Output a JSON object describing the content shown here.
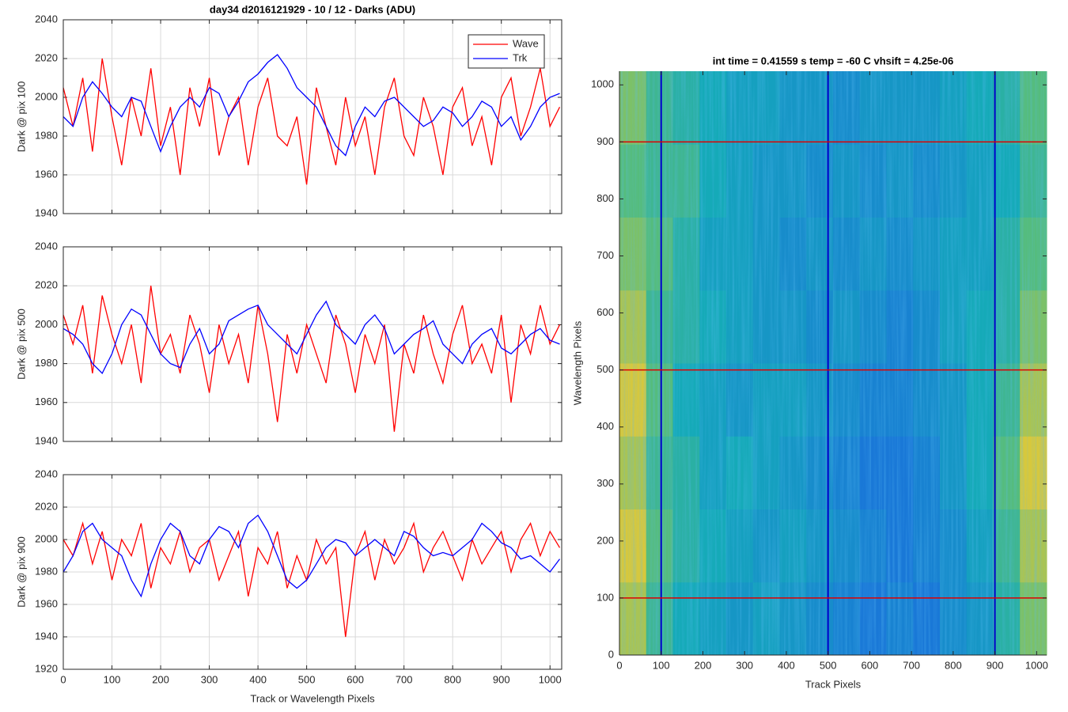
{
  "chart_data": [
    {
      "type": "line",
      "title": "day34 d2016121929 - 10 / 12 - Darks (ADU)",
      "ylabel": "Dark @ pix 100",
      "x": [
        0,
        20,
        40,
        60,
        80,
        100,
        120,
        140,
        160,
        180,
        200,
        220,
        240,
        260,
        280,
        300,
        320,
        340,
        360,
        380,
        400,
        420,
        440,
        460,
        480,
        500,
        520,
        540,
        560,
        580,
        600,
        620,
        640,
        660,
        680,
        700,
        720,
        740,
        760,
        780,
        800,
        820,
        840,
        860,
        880,
        900,
        920,
        940,
        960,
        980,
        1000,
        1020
      ],
      "series": [
        {
          "name": "Wave",
          "color": "#ff0000",
          "values": [
            2005,
            1985,
            2010,
            1972,
            2020,
            1990,
            1965,
            2000,
            1980,
            2015,
            1975,
            1995,
            1960,
            2005,
            1985,
            2010,
            1970,
            1990,
            2000,
            1965,
            1995,
            2010,
            1980,
            1975,
            1990,
            1955,
            2005,
            1985,
            1965,
            2000,
            1975,
            1990,
            1960,
            1995,
            2010,
            1980,
            1970,
            2000,
            1985,
            1960,
            1995,
            2005,
            1975,
            1990,
            1965,
            2000,
            2010,
            1980,
            1995,
            2015,
            1985,
            1995
          ]
        },
        {
          "name": "Trk",
          "color": "#0000ff",
          "values": [
            1990,
            1985,
            2000,
            2008,
            2002,
            1995,
            1990,
            2000,
            1998,
            1985,
            1972,
            1985,
            1995,
            2000,
            1995,
            2005,
            2002,
            1990,
            1998,
            2008,
            2012,
            2018,
            2022,
            2015,
            2005,
            2000,
            1995,
            1985,
            1975,
            1970,
            1985,
            1995,
            1990,
            1998,
            2000,
            1995,
            1990,
            1985,
            1988,
            1995,
            1992,
            1985,
            1990,
            1998,
            1995,
            1985,
            1990,
            1978,
            1985,
            1995,
            2000,
            2002
          ]
        }
      ],
      "xlim": [
        0,
        1024
      ],
      "xticks": [
        0,
        100,
        200,
        300,
        400,
        500,
        600,
        700,
        800,
        900,
        1000
      ],
      "show_xticklabels": false,
      "ylim": [
        1940,
        2040
      ],
      "yticks": [
        1940,
        1960,
        1980,
        2000,
        2020,
        2040
      ],
      "grid": true,
      "legend": "northeast"
    },
    {
      "type": "line",
      "ylabel": "Dark @ pix 500",
      "x": [
        0,
        20,
        40,
        60,
        80,
        100,
        120,
        140,
        160,
        180,
        200,
        220,
        240,
        260,
        280,
        300,
        320,
        340,
        360,
        380,
        400,
        420,
        440,
        460,
        480,
        500,
        520,
        540,
        560,
        580,
        600,
        620,
        640,
        660,
        680,
        700,
        720,
        740,
        760,
        780,
        800,
        820,
        840,
        860,
        880,
        900,
        920,
        940,
        960,
        980,
        1000,
        1020
      ],
      "series": [
        {
          "color": "#ff0000",
          "values": [
            2005,
            1990,
            2010,
            1975,
            2015,
            1995,
            1980,
            2000,
            1970,
            2020,
            1985,
            1995,
            1975,
            2005,
            1990,
            1965,
            2000,
            1980,
            1995,
            1970,
            2010,
            1985,
            1950,
            1995,
            1975,
            2000,
            1985,
            1970,
            2005,
            1990,
            1965,
            1995,
            1980,
            2000,
            1945,
            1990,
            1975,
            2005,
            1985,
            1970,
            1995,
            2010,
            1980,
            1990,
            1975,
            2005,
            1960,
            2000,
            1985,
            2010,
            1990,
            2000
          ]
        },
        {
          "color": "#0000ff",
          "values": [
            1998,
            1995,
            1990,
            1980,
            1975,
            1985,
            2000,
            2008,
            2005,
            1995,
            1985,
            1980,
            1978,
            1990,
            1998,
            1985,
            1990,
            2002,
            2005,
            2008,
            2010,
            2000,
            1995,
            1990,
            1985,
            1995,
            2005,
            2012,
            2000,
            1995,
            1990,
            2000,
            2005,
            1998,
            1985,
            1990,
            1995,
            1998,
            2002,
            1990,
            1985,
            1980,
            1990,
            1995,
            1998,
            1988,
            1985,
            1990,
            1995,
            1998,
            1992,
            1990
          ]
        }
      ],
      "xlim": [
        0,
        1024
      ],
      "xticks": [
        0,
        100,
        200,
        300,
        400,
        500,
        600,
        700,
        800,
        900,
        1000
      ],
      "show_xticklabels": false,
      "ylim": [
        1940,
        2040
      ],
      "yticks": [
        1940,
        1960,
        1980,
        2000,
        2020,
        2040
      ],
      "grid": true
    },
    {
      "type": "line",
      "ylabel": "Dark @ pix 900",
      "xlabel": "Track or Wavelength Pixels",
      "x": [
        0,
        20,
        40,
        60,
        80,
        100,
        120,
        140,
        160,
        180,
        200,
        220,
        240,
        260,
        280,
        300,
        320,
        340,
        360,
        380,
        400,
        420,
        440,
        460,
        480,
        500,
        520,
        540,
        560,
        580,
        600,
        620,
        640,
        660,
        680,
        700,
        720,
        740,
        760,
        780,
        800,
        820,
        840,
        860,
        880,
        900,
        920,
        940,
        960,
        980,
        1000,
        1020
      ],
      "series": [
        {
          "color": "#ff0000",
          "values": [
            2000,
            1990,
            2010,
            1985,
            2005,
            1975,
            2000,
            1990,
            2010,
            1970,
            1995,
            1985,
            2005,
            1980,
            1995,
            2000,
            1975,
            1990,
            2005,
            1965,
            1995,
            1985,
            2005,
            1970,
            1990,
            1975,
            2000,
            1985,
            1995,
            1940,
            1990,
            2005,
            1975,
            2000,
            1985,
            1995,
            2010,
            1980,
            1995,
            2005,
            1990,
            1975,
            2000,
            1985,
            1995,
            2005,
            1980,
            2000,
            2010,
            1990,
            2005,
            1995
          ]
        },
        {
          "color": "#0000ff",
          "values": [
            1980,
            1990,
            2005,
            2010,
            2000,
            1995,
            1990,
            1975,
            1965,
            1985,
            2000,
            2010,
            2005,
            1990,
            1985,
            2000,
            2008,
            2005,
            1995,
            2010,
            2015,
            2005,
            1990,
            1975,
            1970,
            1975,
            1985,
            1995,
            2000,
            1998,
            1990,
            1995,
            2000,
            1995,
            1990,
            2005,
            2002,
            1995,
            1990,
            1992,
            1990,
            1995,
            2000,
            2010,
            2005,
            1998,
            1995,
            1988,
            1990,
            1985,
            1980,
            1988
          ]
        }
      ],
      "xlim": [
        0,
        1024
      ],
      "xticks": [
        0,
        100,
        200,
        300,
        400,
        500,
        600,
        700,
        800,
        900,
        1000
      ],
      "show_xticklabels": true,
      "ylim": [
        1920,
        2040
      ],
      "yticks": [
        1920,
        1940,
        1960,
        1980,
        2000,
        2020,
        2040
      ],
      "grid": true
    },
    {
      "type": "heatmap",
      "title": "int time = 0.41559 s   temp = -60 C   vhsift = 4.25e-06",
      "xlabel": "Track Pixels",
      "ylabel": "Wavelength Pixels",
      "xlim": [
        0,
        1024
      ],
      "ylim": [
        0,
        1024
      ],
      "xticks": [
        0,
        100,
        200,
        300,
        400,
        500,
        600,
        700,
        800,
        900,
        1000
      ],
      "yticks": [
        0,
        100,
        200,
        300,
        400,
        500,
        600,
        700,
        800,
        900,
        1000
      ],
      "z": [
        [
          2000,
          1997,
          1995,
          1994,
          1993,
          1994,
          1993,
          1992,
          1991,
          1990,
          1991,
          1990,
          1992,
          1993,
          1996,
          1999
        ],
        [
          2001,
          1998,
          1996,
          1995,
          1994,
          1993,
          1994,
          1993,
          1992,
          1991,
          1990,
          1991,
          1992,
          1994,
          1997,
          2000
        ],
        [
          2000,
          1997,
          1996,
          1994,
          1995,
          1994,
          1993,
          1992,
          1991,
          1990,
          1990,
          1991,
          1993,
          1995,
          1998,
          2001
        ],
        [
          2001,
          1998,
          1995,
          1994,
          1993,
          1994,
          1994,
          1993,
          1992,
          1991,
          1991,
          1992,
          1993,
          1995,
          1997,
          2000
        ],
        [
          2000,
          1997,
          1996,
          1995,
          1994,
          1993,
          1993,
          1992,
          1993,
          1992,
          1991,
          1992,
          1994,
          1995,
          1996,
          1999
        ],
        [
          1999,
          1998,
          1996,
          1994,
          1994,
          1993,
          1992,
          1993,
          1992,
          1993,
          1992,
          1993,
          1994,
          1994,
          1996,
          1998
        ],
        [
          1998,
          1997,
          1997,
          1995,
          1994,
          1993,
          1993,
          1992,
          1993,
          1992,
          1993,
          1992,
          1993,
          1994,
          1995,
          1997
        ],
        [
          1999,
          1997,
          1996,
          1995,
          1994,
          1994,
          1993,
          1993,
          1992,
          1993,
          1993,
          1993,
          1994,
          1995,
          1996,
          1998
        ]
      ],
      "vlines": [
        100,
        500,
        900
      ],
      "vline_color": "#0000cc",
      "hlines": [
        100,
        500,
        900
      ],
      "hline_color": "#dd0000"
    }
  ]
}
